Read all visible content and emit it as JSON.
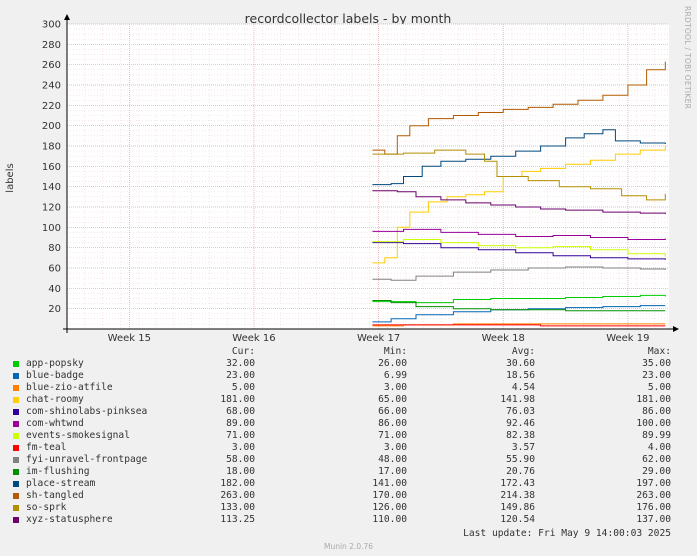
{
  "chart_data": {
    "type": "line",
    "title": "recordcollector labels - by month",
    "ylabel": "labels",
    "ylim": [
      0,
      300
    ],
    "yticks": [
      20,
      40,
      60,
      80,
      100,
      120,
      140,
      160,
      180,
      200,
      220,
      240,
      260,
      280,
      300
    ],
    "xlim": [
      14.5,
      19.33
    ],
    "xticks": [
      {
        "label": "Week 15",
        "x": 15
      },
      {
        "label": "Week 16",
        "x": 16
      },
      {
        "label": "Week 17",
        "x": 17
      },
      {
        "label": "Week 18",
        "x": 18
      },
      {
        "label": "Week 19",
        "x": 19
      }
    ],
    "series": [
      {
        "name": "app-popsky",
        "color": "#00cc00",
        "cur": "32.00",
        "min": "26.00",
        "avg": "30.60",
        "max": "35.00",
        "points": [
          [
            16.95,
            27
          ],
          [
            17.3,
            26
          ],
          [
            17.6,
            29
          ],
          [
            17.9,
            30
          ],
          [
            18.2,
            30
          ],
          [
            18.5,
            31
          ],
          [
            18.8,
            32
          ],
          [
            19.1,
            33
          ],
          [
            19.3,
            32
          ]
        ]
      },
      {
        "name": "blue-badge",
        "color": "#0066b3",
        "cur": "23.00",
        "min": "6.99",
        "avg": "18.56",
        "max": "23.00",
        "points": [
          [
            16.95,
            7
          ],
          [
            17.1,
            10
          ],
          [
            17.3,
            14
          ],
          [
            17.6,
            17
          ],
          [
            17.9,
            19
          ],
          [
            18.2,
            20
          ],
          [
            18.5,
            21
          ],
          [
            18.8,
            22
          ],
          [
            19.1,
            23
          ],
          [
            19.3,
            23
          ]
        ]
      },
      {
        "name": "blue-zio-atfile",
        "color": "#ff8000",
        "cur": "5.00",
        "min": "3.00",
        "avg": "4.54",
        "max": "5.00",
        "points": [
          [
            16.95,
            3
          ],
          [
            17.2,
            4
          ],
          [
            17.6,
            5
          ],
          [
            18.2,
            5
          ],
          [
            19.3,
            5
          ]
        ]
      },
      {
        "name": "chat-roomy",
        "color": "#ffcc00",
        "cur": "181.00",
        "min": "65.00",
        "avg": "141.98",
        "max": "181.00",
        "points": [
          [
            16.95,
            65
          ],
          [
            17.05,
            70
          ],
          [
            17.15,
            100
          ],
          [
            17.25,
            115
          ],
          [
            17.4,
            125
          ],
          [
            17.55,
            130
          ],
          [
            17.7,
            132
          ],
          [
            17.85,
            135
          ],
          [
            18.0,
            150
          ],
          [
            18.15,
            155
          ],
          [
            18.3,
            158
          ],
          [
            18.5,
            162
          ],
          [
            18.7,
            166
          ],
          [
            18.9,
            172
          ],
          [
            19.1,
            176
          ],
          [
            19.3,
            181
          ]
        ]
      },
      {
        "name": "com-shinolabs-pinksea",
        "color": "#330099",
        "cur": "68.00",
        "min": "66.00",
        "avg": "76.03",
        "max": "86.00",
        "points": [
          [
            16.95,
            85
          ],
          [
            17.2,
            84
          ],
          [
            17.5,
            80
          ],
          [
            17.8,
            78
          ],
          [
            18.1,
            75
          ],
          [
            18.4,
            72
          ],
          [
            18.7,
            70
          ],
          [
            19.0,
            69
          ],
          [
            19.3,
            68
          ]
        ]
      },
      {
        "name": "com-whtwnd",
        "color": "#990099",
        "cur": "89.00",
        "min": "86.00",
        "avg": "92.46",
        "max": "100.00",
        "points": [
          [
            16.95,
            96
          ],
          [
            17.2,
            98
          ],
          [
            17.5,
            95
          ],
          [
            17.8,
            93
          ],
          [
            18.1,
            91
          ],
          [
            18.4,
            92
          ],
          [
            18.7,
            90
          ],
          [
            19.0,
            88
          ],
          [
            19.3,
            89
          ]
        ]
      },
      {
        "name": "events-smokesignal",
        "color": "#ccff00",
        "cur": "71.00",
        "min": "71.00",
        "avg": "82.38",
        "max": "89.99",
        "points": [
          [
            16.95,
            86
          ],
          [
            17.2,
            88
          ],
          [
            17.5,
            85
          ],
          [
            17.8,
            82
          ],
          [
            18.1,
            80
          ],
          [
            18.4,
            81
          ],
          [
            18.7,
            78
          ],
          [
            19.0,
            74
          ],
          [
            19.3,
            71
          ]
        ]
      },
      {
        "name": "fm-teal",
        "color": "#ff0000",
        "cur": "3.00",
        "min": "3.00",
        "avg": "3.57",
        "max": "4.00",
        "points": [
          [
            16.95,
            4
          ],
          [
            17.6,
            4
          ],
          [
            18.3,
            3
          ],
          [
            19.3,
            3
          ]
        ]
      },
      {
        "name": "fyi-unravel-frontpage",
        "color": "#808080",
        "cur": "58.00",
        "min": "48.00",
        "avg": "55.90",
        "max": "62.00",
        "points": [
          [
            16.95,
            49
          ],
          [
            17.1,
            48
          ],
          [
            17.3,
            52
          ],
          [
            17.6,
            56
          ],
          [
            17.9,
            58
          ],
          [
            18.2,
            60
          ],
          [
            18.5,
            61
          ],
          [
            18.8,
            60
          ],
          [
            19.1,
            59
          ],
          [
            19.3,
            58
          ]
        ]
      },
      {
        "name": "im-flushing",
        "color": "#008f00",
        "cur": "18.00",
        "min": "17.00",
        "avg": "20.76",
        "max": "29.00",
        "points": [
          [
            16.95,
            28
          ],
          [
            17.1,
            26
          ],
          [
            17.3,
            22
          ],
          [
            17.6,
            20
          ],
          [
            17.9,
            19
          ],
          [
            18.2,
            19
          ],
          [
            18.5,
            18
          ],
          [
            18.8,
            18
          ],
          [
            19.3,
            18
          ]
        ]
      },
      {
        "name": "place-stream",
        "color": "#00487d",
        "cur": "182.00",
        "min": "141.00",
        "avg": "172.43",
        "max": "197.00",
        "points": [
          [
            16.95,
            142
          ],
          [
            17.1,
            143
          ],
          [
            17.2,
            150
          ],
          [
            17.35,
            160
          ],
          [
            17.5,
            165
          ],
          [
            17.7,
            167
          ],
          [
            17.9,
            170
          ],
          [
            18.1,
            175
          ],
          [
            18.3,
            180
          ],
          [
            18.5,
            188
          ],
          [
            18.65,
            192
          ],
          [
            18.8,
            196
          ],
          [
            18.9,
            185
          ],
          [
            19.1,
            183
          ],
          [
            19.3,
            182
          ]
        ]
      },
      {
        "name": "sh-tangled",
        "color": "#b35a00",
        "cur": "263.00",
        "min": "170.00",
        "avg": "214.38",
        "max": "263.00",
        "points": [
          [
            16.95,
            176
          ],
          [
            17.05,
            172
          ],
          [
            17.15,
            190
          ],
          [
            17.25,
            200
          ],
          [
            17.4,
            207
          ],
          [
            17.6,
            210
          ],
          [
            17.8,
            213
          ],
          [
            18.0,
            216
          ],
          [
            18.2,
            218
          ],
          [
            18.4,
            221
          ],
          [
            18.6,
            225
          ],
          [
            18.8,
            230
          ],
          [
            19.0,
            240
          ],
          [
            19.15,
            255
          ],
          [
            19.3,
            263
          ]
        ]
      },
      {
        "name": "so-sprk",
        "color": "#b38f00",
        "cur": "133.00",
        "min": "126.00",
        "avg": "149.86",
        "max": "176.00",
        "points": [
          [
            16.95,
            172
          ],
          [
            17.2,
            173
          ],
          [
            17.45,
            176
          ],
          [
            17.7,
            172
          ],
          [
            17.85,
            165
          ],
          [
            17.95,
            150
          ],
          [
            18.2,
            146
          ],
          [
            18.45,
            140
          ],
          [
            18.7,
            138
          ],
          [
            18.95,
            131
          ],
          [
            19.15,
            127
          ],
          [
            19.3,
            133
          ]
        ]
      },
      {
        "name": "xyz-statusphere",
        "color": "#6b006b",
        "cur": "113.25",
        "min": "110.00",
        "avg": "120.54",
        "max": "137.00",
        "points": [
          [
            16.95,
            136
          ],
          [
            17.15,
            135
          ],
          [
            17.3,
            130
          ],
          [
            17.5,
            127
          ],
          [
            17.7,
            124
          ],
          [
            17.9,
            122
          ],
          [
            18.1,
            120
          ],
          [
            18.3,
            118
          ],
          [
            18.5,
            117
          ],
          [
            18.8,
            115
          ],
          [
            19.1,
            114
          ],
          [
            19.3,
            113
          ]
        ]
      }
    ]
  },
  "legend_header": {
    "cur": "Cur:",
    "min": "Min:",
    "avg": "Avg:",
    "max": "Max:"
  },
  "last_update": "Last update: Fri May  9 14:00:03 2025",
  "watermark": "RRDTOOL / TOBI OETIKER",
  "footer": "Munin 2.0.76",
  "colors": {
    "background": "#f0f0f0",
    "plot_background": "#ffffff",
    "grid": "#e6a0a0",
    "axis": "#000000"
  }
}
